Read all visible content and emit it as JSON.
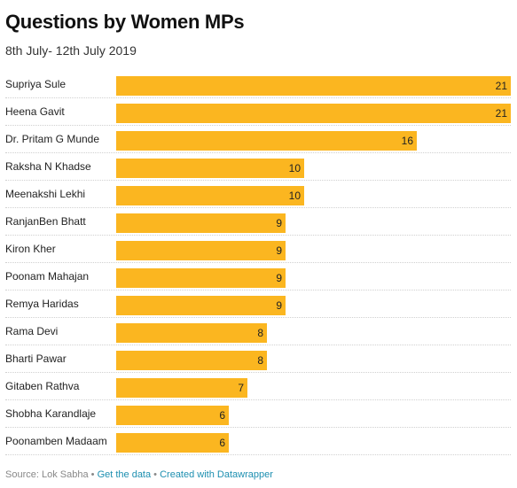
{
  "header": {
    "title": "Questions by Women MPs",
    "subtitle": "8th July- 12th July 2019"
  },
  "chart_data": {
    "type": "bar",
    "orientation": "horizontal",
    "title": "Questions by Women MPs",
    "subtitle": "8th July- 12th July 2019",
    "categories": [
      "Supriya Sule",
      "Heena Gavit",
      "Dr. Pritam G Munde",
      "Raksha N Khadse",
      "Meenakshi Lekhi",
      "RanjanBen Bhatt",
      "Kiron Kher",
      "Poonam Mahajan",
      "Remya Haridas",
      "Rama Devi",
      "Bharti Pawar",
      "Gitaben Rathva",
      "Shobha Karandlaje",
      "Poonamben Madaam"
    ],
    "values": [
      21,
      21,
      16,
      10,
      10,
      9,
      9,
      9,
      9,
      8,
      8,
      7,
      6,
      6
    ],
    "xlim": [
      0,
      21
    ],
    "grid": false,
    "bar_color": "#fbb620"
  },
  "footer": {
    "source": "Source: Lok Sabha",
    "get_data": "Get the data",
    "created_with": "Created with Datawrapper",
    "separator": "•"
  }
}
